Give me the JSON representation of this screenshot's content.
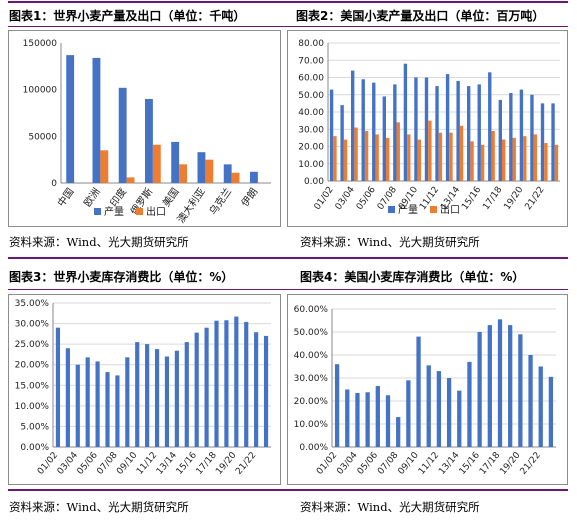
{
  "captions": {
    "c1": "图表1：世界小麦产量及出口（单位：千吨）",
    "c2": "图表2：美国小麦产量及出口（单位：百万吨）",
    "c3": "图表3：世界小麦库存消费比（单位：%）",
    "c4": "图表4：美国小麦库存消费比（单位：%）"
  },
  "sources": {
    "s1": "资料来源：Wind、光大期货研究所",
    "s2": "资料来源：Wind、光大期货研究所",
    "s3": "资料来源：Wind、光大期货研究所",
    "s4": "资料来源：Wind、光大期货研究所"
  },
  "colors": {
    "blue": "#4472c4",
    "orange": "#ed7d31",
    "rule": "#6a1a6e"
  },
  "chart_data": [
    {
      "id": "c1",
      "type": "bar",
      "categories": [
        "中国",
        "欧洲",
        "印度",
        "俄罗斯",
        "美国",
        "澳大利亚",
        "乌克兰",
        "伊朗"
      ],
      "series": [
        {
          "name": "产量",
          "values": [
            137000,
            134000,
            102000,
            90000,
            44000,
            33000,
            20000,
            12000
          ]
        },
        {
          "name": "出口",
          "values": [
            0,
            35000,
            6000,
            41000,
            20000,
            25000,
            11000,
            0
          ]
        }
      ],
      "ylim": [
        0,
        150000
      ],
      "yticks": [
        "0",
        "50000",
        "100000",
        "150000"
      ],
      "grid": false,
      "legend": "bottom"
    },
    {
      "id": "c2",
      "type": "bar",
      "x": [
        "01/02",
        "02/03",
        "03/04",
        "04/05",
        "05/06",
        "06/07",
        "07/08",
        "08/09",
        "09/10",
        "10/11",
        "11/12",
        "12/13",
        "13/14",
        "14/15",
        "15/16",
        "16/17",
        "17/18",
        "18/19",
        "19/20",
        "20/21",
        "21/22",
        "22/23"
      ],
      "xticklabels": [
        "01/02",
        "03/04",
        "05/06",
        "07/08",
        "09/10",
        "11/12",
        "13/14",
        "15/16",
        "17/18",
        "19/20",
        "21/22"
      ],
      "series": [
        {
          "name": "产量",
          "values": [
            53,
            44,
            64,
            59,
            57,
            49,
            56,
            68,
            60,
            60,
            55,
            62,
            58,
            55,
            56,
            63,
            47,
            51,
            53,
            50,
            45,
            45
          ]
        },
        {
          "name": "出口",
          "values": [
            26,
            24,
            31,
            29,
            27,
            25,
            34,
            27,
            24,
            35,
            28,
            28,
            32,
            23,
            21,
            29,
            24,
            25,
            26,
            27,
            22,
            21
          ]
        }
      ],
      "ylim": [
        0,
        80
      ],
      "yticks": [
        "0.00",
        "10.00",
        "20.00",
        "30.00",
        "40.00",
        "50.00",
        "60.00",
        "70.00",
        "80.00"
      ],
      "grid": true,
      "legend": "bottom"
    },
    {
      "id": "c3",
      "type": "bar",
      "x": [
        "01/02",
        "02/03",
        "03/04",
        "04/05",
        "05/06",
        "06/07",
        "07/08",
        "08/09",
        "09/10",
        "10/11",
        "11/12",
        "12/13",
        "13/14",
        "14/15",
        "15/16",
        "16/17",
        "17/18",
        "18/19",
        "19/20",
        "20/21",
        "21/22",
        "22/23"
      ],
      "xticklabels": [
        "01/02",
        "03/04",
        "05/06",
        "07/08",
        "09/10",
        "11/12",
        "13/14",
        "15/16",
        "17/18",
        "19/20",
        "21/22"
      ],
      "series": [
        {
          "name": "",
          "values": [
            29.0,
            24.0,
            20.0,
            21.8,
            20.8,
            18.2,
            17.4,
            21.8,
            25.5,
            25.0,
            23.8,
            22.0,
            23.4,
            25.5,
            27.8,
            29.0,
            30.7,
            30.8,
            31.7,
            30.4,
            27.9,
            27.0
          ]
        }
      ],
      "ylim": [
        0,
        35
      ],
      "yticks": [
        "0.00%",
        "5.00%",
        "10.00%",
        "15.00%",
        "20.00%",
        "25.00%",
        "30.00%",
        "35.00%"
      ],
      "grid": true,
      "legend": "none"
    },
    {
      "id": "c4",
      "type": "bar",
      "x": [
        "01/02",
        "02/03",
        "03/04",
        "04/05",
        "05/06",
        "06/07",
        "07/08",
        "08/09",
        "09/10",
        "10/11",
        "11/12",
        "12/13",
        "13/14",
        "14/15",
        "15/16",
        "16/17",
        "17/18",
        "18/19",
        "19/20",
        "20/21",
        "21/22",
        "22/23"
      ],
      "xticklabels": [
        "01/02",
        "03/04",
        "05/06",
        "07/08",
        "09/10",
        "11/12",
        "13/14",
        "15/16",
        "17/18",
        "19/20",
        "21/22"
      ],
      "series": [
        {
          "name": "",
          "values": [
            36.0,
            25.0,
            23.5,
            23.8,
            26.5,
            22.5,
            13.0,
            29.0,
            48.0,
            35.5,
            33.0,
            30.0,
            24.5,
            37.0,
            50.0,
            53.0,
            55.5,
            53.0,
            49.0,
            40.0,
            35.0,
            30.5
          ]
        }
      ],
      "ylim": [
        0,
        60
      ],
      "yticks": [
        "0.00%",
        "10.00%",
        "20.00%",
        "30.00%",
        "40.00%",
        "50.00%",
        "60.00%"
      ],
      "grid": true,
      "legend": "none"
    }
  ]
}
